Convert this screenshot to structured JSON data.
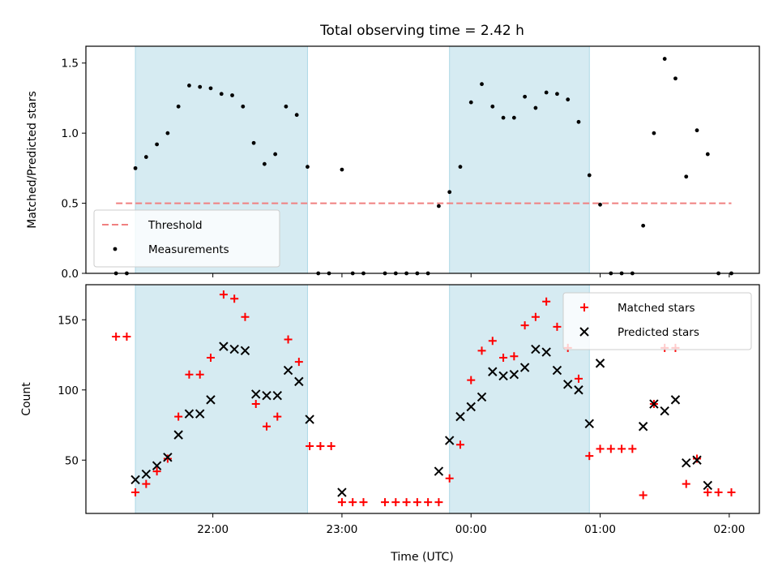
{
  "title": "Total observing time = 2.42 h",
  "xlabel": "Time (UTC)",
  "x_tick_labels": [
    "22:00",
    "23:00",
    "00:00",
    "01:00",
    "02:00"
  ],
  "colors": {
    "shade": "#add8e6",
    "threshold": "#f08080",
    "measurement": "#000000",
    "matched": "#ff0000",
    "predicted": "#000000"
  },
  "chart_data": [
    {
      "type": "scatter",
      "ylabel": "Matched/Predicted stars",
      "ylim": [
        0,
        1.62
      ],
      "y_ticks": [
        0.0,
        0.5,
        1.0,
        1.5
      ],
      "y_tick_labels": [
        "0.0",
        "0.5",
        "1.0",
        "1.5"
      ],
      "xlim": [
        "21:01",
        "02:14"
      ],
      "shaded_intervals": [
        [
          "21:24",
          "22:44"
        ],
        [
          "23:50",
          "00:55"
        ]
      ],
      "legend": {
        "placement": "lower-left",
        "entries": [
          "Threshold",
          "Measurements"
        ]
      },
      "threshold": {
        "name": "Threshold",
        "y": 0.5,
        "x_start": "21:15",
        "x_end": "02:01"
      },
      "series": [
        {
          "name": "Measurements",
          "x": [
            "21:15",
            "21:20",
            "21:24",
            "21:29",
            "21:34",
            "21:39",
            "21:44",
            "21:49",
            "21:54",
            "21:59",
            "22:04",
            "22:09",
            "22:14",
            "22:19",
            "22:24",
            "22:29",
            "22:34",
            "22:39",
            "22:44",
            "22:49",
            "22:54",
            "23:00",
            "23:05",
            "23:10",
            "23:20",
            "23:25",
            "23:30",
            "23:35",
            "23:40",
            "23:45",
            "23:50",
            "23:55",
            "24:00",
            "24:05",
            "24:10",
            "24:15",
            "24:20",
            "24:25",
            "24:30",
            "24:35",
            "24:40",
            "24:45",
            "24:50",
            "24:55",
            "25:00",
            "25:05",
            "25:10",
            "25:15",
            "25:20",
            "25:25",
            "25:30",
            "25:35",
            "25:40",
            "25:45",
            "25:50",
            "25:55",
            "26:01"
          ],
          "y": [
            0,
            0,
            0.75,
            0.83,
            0.92,
            1.0,
            1.19,
            1.34,
            1.33,
            1.32,
            1.28,
            1.27,
            1.19,
            0.93,
            0.78,
            0.85,
            1.19,
            1.13,
            0.76,
            0,
            0,
            0.74,
            0,
            0,
            0,
            0,
            0,
            0,
            0,
            0.48,
            0.58,
            0.76,
            1.22,
            1.35,
            1.19,
            1.11,
            1.11,
            1.26,
            1.18,
            1.29,
            1.28,
            1.24,
            1.08,
            0.7,
            0.49,
            0,
            0,
            0,
            0.34,
            1.0,
            1.53,
            1.39,
            0.69,
            1.02,
            0.85,
            0,
            0
          ]
        }
      ]
    },
    {
      "type": "scatter",
      "ylabel": "Count",
      "ylim": [
        12,
        175
      ],
      "y_ticks": [
        50,
        100,
        150
      ],
      "y_tick_labels": [
        "50",
        "100",
        "150"
      ],
      "xlim": [
        "21:01",
        "02:14"
      ],
      "shaded_intervals": [
        [
          "21:24",
          "22:44"
        ],
        [
          "23:50",
          "00:55"
        ]
      ],
      "legend": {
        "placement": "upper-right",
        "entries": [
          "Matched stars",
          "Predicted stars"
        ]
      },
      "series": [
        {
          "name": "Matched stars",
          "marker": "plus",
          "x": [
            "21:15",
            "21:20",
            "21:24",
            "21:29",
            "21:34",
            "21:39",
            "21:44",
            "21:49",
            "21:54",
            "21:59",
            "22:05",
            "22:10",
            "22:15",
            "22:20",
            "22:25",
            "22:30",
            "22:35",
            "22:40",
            "22:45",
            "22:50",
            "22:55",
            "23:00",
            "23:05",
            "23:10",
            "23:20",
            "23:25",
            "23:30",
            "23:35",
            "23:40",
            "23:45",
            "23:50",
            "23:55",
            "24:00",
            "24:05",
            "24:10",
            "24:15",
            "24:20",
            "24:25",
            "24:30",
            "24:35",
            "24:40",
            "24:45",
            "24:50",
            "24:55",
            "25:00",
            "25:05",
            "25:10",
            "25:15",
            "25:20",
            "25:25",
            "25:30",
            "25:35",
            "25:40",
            "25:45",
            "25:50",
            "25:55",
            "26:01"
          ],
          "y": [
            138,
            138,
            27,
            33,
            42,
            51,
            81,
            111,
            111,
            123,
            168,
            165,
            152,
            90,
            74,
            81,
            136,
            120,
            60,
            60,
            60,
            20,
            20,
            20,
            20,
            20,
            20,
            20,
            20,
            20,
            37,
            61,
            107,
            128,
            135,
            123,
            124,
            146,
            152,
            163,
            145,
            130,
            108,
            53,
            58,
            58,
            58,
            58,
            25,
            90,
            130,
            130,
            33,
            51,
            27,
            27,
            27
          ]
        },
        {
          "name": "Predicted stars",
          "marker": "x",
          "x": [
            "21:24",
            "21:29",
            "21:34",
            "21:39",
            "21:44",
            "21:49",
            "21:54",
            "21:59",
            "22:05",
            "22:10",
            "22:15",
            "22:20",
            "22:25",
            "22:30",
            "22:35",
            "22:40",
            "22:45",
            "23:00",
            "23:45",
            "23:50",
            "23:55",
            "24:00",
            "24:05",
            "24:10",
            "24:15",
            "24:20",
            "24:25",
            "24:30",
            "24:35",
            "24:40",
            "24:45",
            "24:50",
            "24:55",
            "25:00",
            "25:20",
            "25:25",
            "25:30",
            "25:35",
            "25:40",
            "25:45",
            "25:50"
          ],
          "y": [
            36,
            40,
            46,
            52,
            68,
            83,
            83,
            93,
            131,
            129,
            128,
            97,
            96,
            96,
            114,
            106,
            79,
            27,
            42,
            64,
            81,
            88,
            95,
            113,
            110,
            111,
            116,
            129,
            127,
            114,
            104,
            100,
            76,
            119,
            74,
            90,
            85,
            93,
            48,
            50,
            32
          ]
        }
      ]
    }
  ]
}
